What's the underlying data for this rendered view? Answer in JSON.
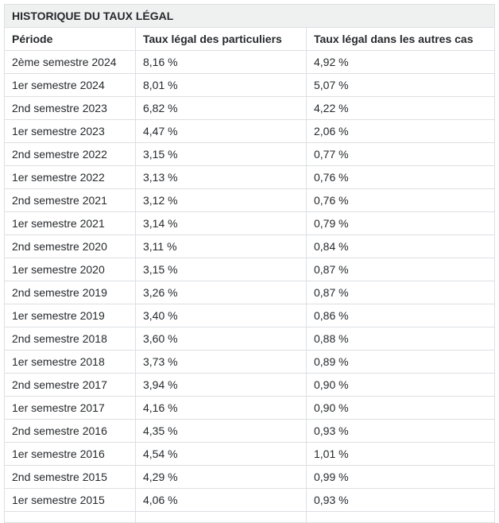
{
  "table": {
    "title": "HISTORIQUE DU TAUX LÉGAL",
    "columns": [
      "Période",
      "Taux légal des particuliers",
      "Taux légal dans les autres cas"
    ],
    "rows": [
      [
        "2ème semestre 2024",
        "8,16 %",
        "4,92 %"
      ],
      [
        "1er semestre 2024",
        "8,01 %",
        "5,07 %"
      ],
      [
        "2nd semestre 2023",
        "6,82 %",
        "4,22 %"
      ],
      [
        "1er semestre 2023",
        "4,47 %",
        "2,06 %"
      ],
      [
        "2nd semestre 2022",
        "3,15 %",
        "0,77 %"
      ],
      [
        "1er semestre 2022",
        "3,13 %",
        "0,76 %"
      ],
      [
        "2nd semestre 2021",
        "3,12 %",
        "0,76 %"
      ],
      [
        "1er semestre 2021",
        "3,14 %",
        "0,79 %"
      ],
      [
        "2nd semestre 2020",
        "3,11 %",
        "0,84 %"
      ],
      [
        "1er semestre 2020",
        "3,15 %",
        "0,87 %"
      ],
      [
        "2nd semestre 2019",
        "3,26 %",
        "0,87 %"
      ],
      [
        "1er semestre 2019",
        "3,40 %",
        "0,86 %"
      ],
      [
        "2nd semestre 2018",
        "3,60 %",
        "0,88 %"
      ],
      [
        "1er semestre 2018",
        "3,73 %",
        "0,89 %"
      ],
      [
        "2nd semestre 2017",
        "3,94 %",
        "0,90 %"
      ],
      [
        "1er semestre 2017",
        "4,16 %",
        "0,90 %"
      ],
      [
        "2nd semestre 2016",
        "4,35 %",
        "0,93 %"
      ],
      [
        "1er semestre 2016",
        "4,54 %",
        "1,01 %"
      ],
      [
        "2nd semestre 2015",
        "4,29 %",
        "0,99 %"
      ],
      [
        "1er semestre 2015",
        "4,06 %",
        "0,93 %"
      ]
    ]
  },
  "colors": {
    "background": "#ffffff",
    "title_background": "#eff1f1",
    "border": "#dcdfe2",
    "text": "#26292c"
  }
}
